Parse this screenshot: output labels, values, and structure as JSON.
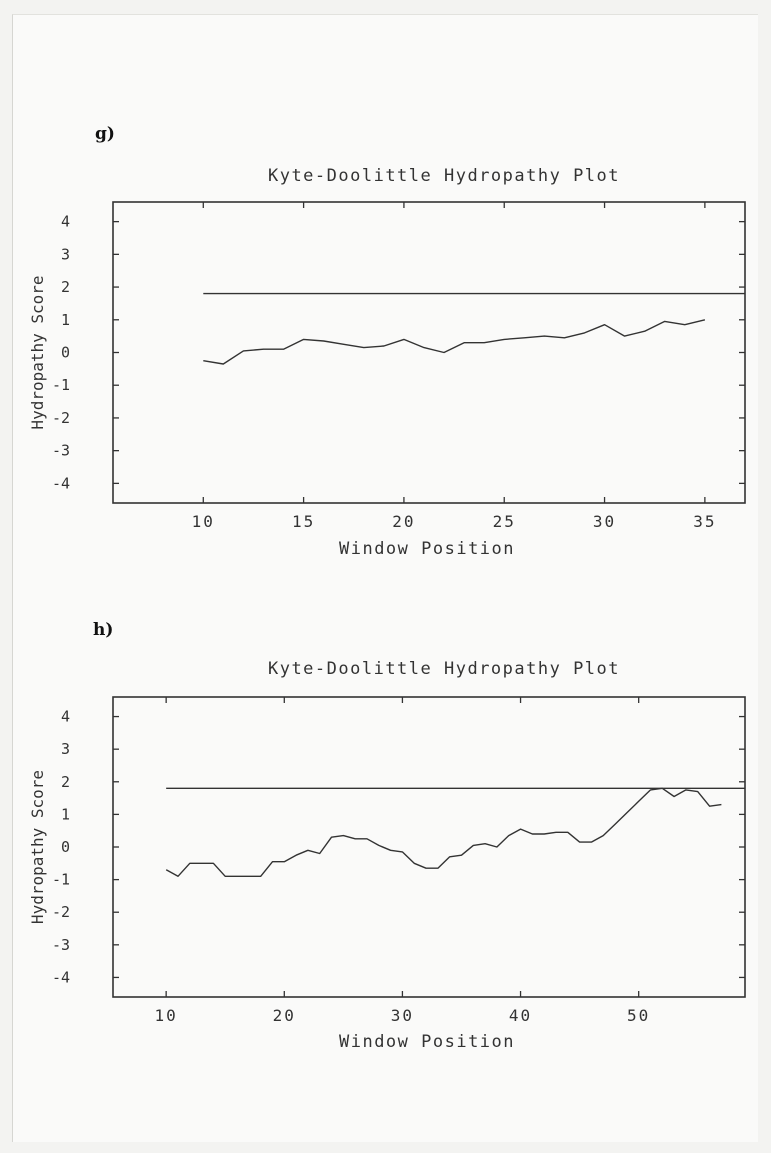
{
  "panels": [
    {
      "label": "g)"
    },
    {
      "label": "h)"
    }
  ],
  "chart_data": [
    {
      "type": "line",
      "title": "Kyte-Doolittle Hydropathy Plot",
      "xlabel": "Window Position",
      "ylabel": "Hydropathy Score",
      "xlim": [
        5.5,
        37
      ],
      "ylim": [
        -4.6,
        4.6
      ],
      "xticks": [
        10,
        15,
        20,
        25,
        30,
        35
      ],
      "yticks": [
        4,
        3,
        2,
        1,
        0,
        -1,
        -2,
        -3,
        -4
      ],
      "threshold": 1.8,
      "series": [
        {
          "x": [
            10,
            11,
            12,
            13,
            14,
            15,
            16,
            17,
            18,
            19,
            20,
            21,
            22,
            23,
            24,
            25,
            26,
            27,
            28,
            29,
            30,
            31,
            32,
            33,
            34,
            35
          ],
          "y": [
            -0.25,
            -0.35,
            0.05,
            0.1,
            0.1,
            0.4,
            0.35,
            0.25,
            0.15,
            0.2,
            0.4,
            0.15,
            0.0,
            0.3,
            0.3,
            0.4,
            0.45,
            0.5,
            0.45,
            0.6,
            0.85,
            0.5,
            0.65,
            0.95,
            0.85,
            1.0
          ]
        }
      ],
      "color": "#333333"
    },
    {
      "type": "line",
      "title": "Kyte-Doolittle Hydropathy Plot",
      "xlabel": "Window Position",
      "ylabel": "Hydropathy Score",
      "xlim": [
        5.5,
        59
      ],
      "ylim": [
        -4.6,
        4.6
      ],
      "xticks": [
        10,
        20,
        30,
        40,
        50
      ],
      "yticks": [
        4,
        3,
        2,
        1,
        0,
        -1,
        -2,
        -3,
        -4
      ],
      "threshold": 1.8,
      "series": [
        {
          "x": [
            10,
            11,
            12,
            13,
            14,
            15,
            16,
            17,
            18,
            19,
            20,
            21,
            22,
            23,
            24,
            25,
            26,
            27,
            28,
            29,
            30,
            31,
            32,
            33,
            34,
            35,
            36,
            37,
            38,
            39,
            40,
            41,
            42,
            43,
            44,
            45,
            46,
            47,
            48,
            49,
            50,
            51,
            52,
            53,
            54,
            55,
            56,
            57
          ],
          "y": [
            -0.7,
            -0.9,
            -0.5,
            -0.5,
            -0.5,
            -0.9,
            -0.9,
            -0.9,
            -0.9,
            -0.45,
            -0.45,
            -0.25,
            -0.1,
            -0.2,
            0.3,
            0.35,
            0.25,
            0.25,
            0.05,
            -0.1,
            -0.15,
            -0.5,
            -0.65,
            -0.65,
            -0.3,
            -0.25,
            0.05,
            0.1,
            0.0,
            0.35,
            0.55,
            0.4,
            0.4,
            0.45,
            0.45,
            0.15,
            0.15,
            0.35,
            0.7,
            1.05,
            1.4,
            1.75,
            1.8,
            1.55,
            1.75,
            1.7,
            1.25,
            1.3
          ]
        }
      ],
      "color": "#333333"
    }
  ]
}
